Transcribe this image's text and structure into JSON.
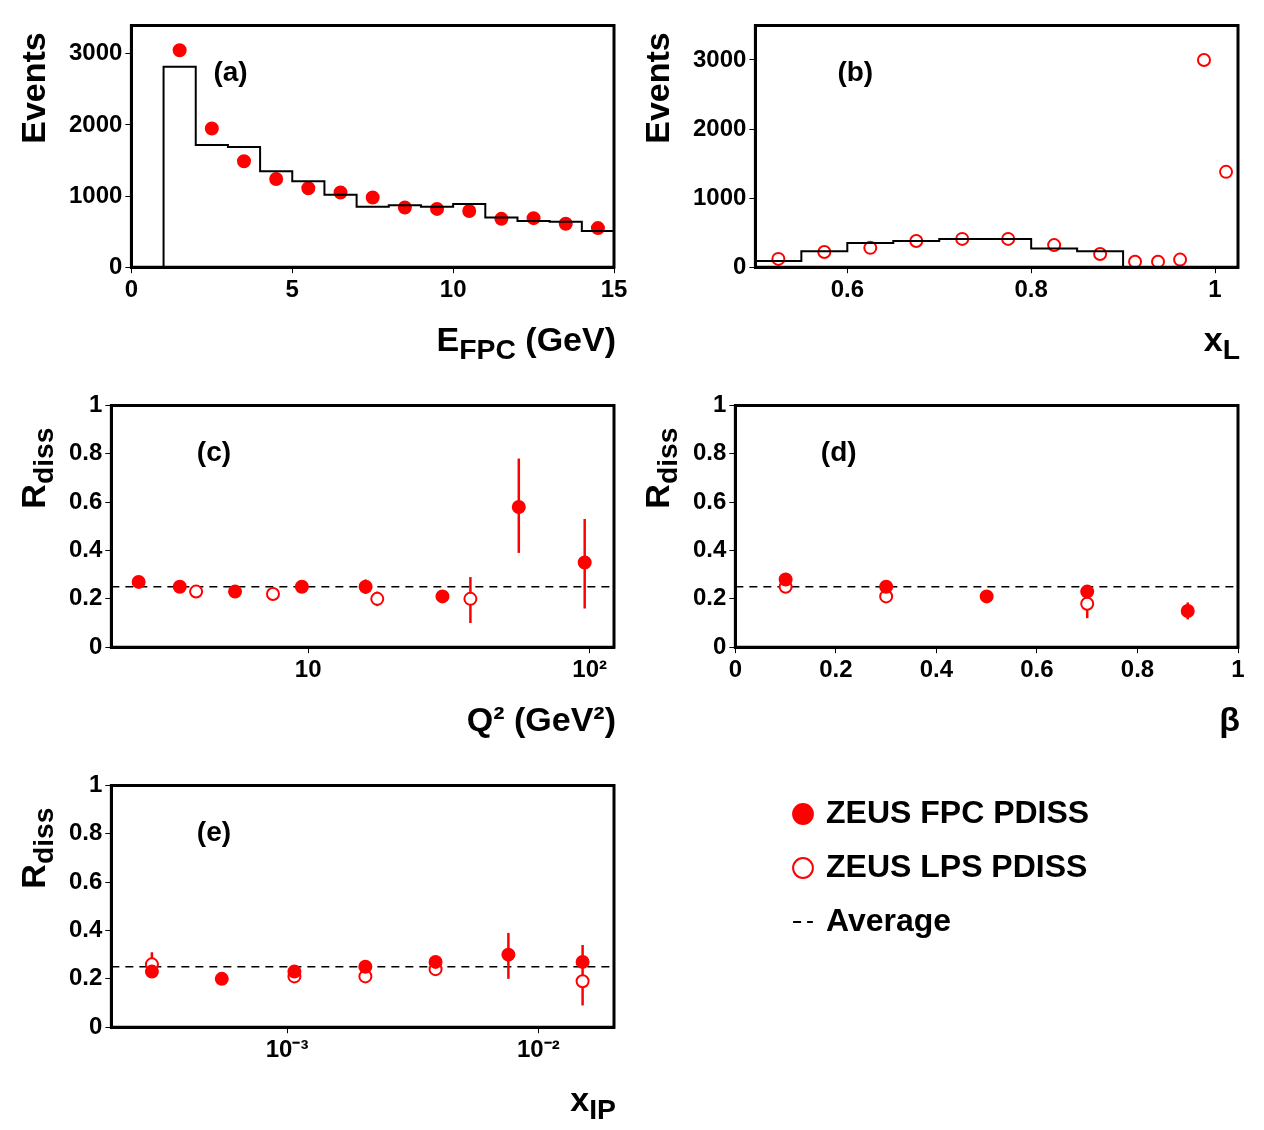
{
  "chart_data": [
    {
      "type": "scatter",
      "ylabel": "Events",
      "xlabel": "E$_{FPC}$ (GeV)",
      "annotations": [
        "(a)"
      ],
      "xlim": [
        0,
        15
      ],
      "xticks": [
        0,
        5,
        10,
        15
      ],
      "ylim": [
        0,
        3400
      ],
      "yticks": [
        0,
        1000,
        2000,
        3000
      ],
      "series": [
        {
          "type": "histogram",
          "color": "#000000",
          "bins": [
            1,
            2,
            3,
            4,
            5,
            6,
            7,
            8,
            9,
            10,
            11,
            12,
            13,
            14,
            15
          ],
          "values": [
            2820,
            1720,
            1690,
            1350,
            1210,
            1020,
            850,
            870,
            850,
            890,
            700,
            650,
            640,
            510
          ]
        },
        {
          "type": "scatter",
          "color": "#ff0000",
          "marker": "circle",
          "x": [
            1.5,
            2.5,
            3.5,
            4.5,
            5.5,
            6.5,
            7.5,
            8.5,
            9.5,
            10.5,
            11.5,
            12.5,
            13.5,
            14.5
          ],
          "values": [
            3050,
            1950,
            1490,
            1240,
            1110,
            1050,
            980,
            840,
            820,
            790,
            680,
            690,
            610,
            550
          ]
        }
      ]
    },
    {
      "type": "scatter",
      "ylabel": "Events",
      "xlabel": "x$_{L}$",
      "annotations": [
        "(b)"
      ],
      "xlim": [
        0.5,
        1.025
      ],
      "xticks": [
        0.6,
        0.8,
        1
      ],
      "ylim": [
        0,
        3500
      ],
      "yticks": [
        0,
        1000,
        2000,
        3000
      ],
      "series": [
        {
          "type": "histogram",
          "color": "#000000",
          "bins": [
            0.5,
            0.55,
            0.6,
            0.65,
            0.7,
            0.75,
            0.8,
            0.85,
            0.9
          ],
          "values": [
            90,
            230,
            350,
            380,
            410,
            410,
            270,
            230
          ]
        },
        {
          "type": "scatter",
          "color": "#ff0000",
          "marker": "circle-open",
          "x": [
            0.525,
            0.575,
            0.625,
            0.675,
            0.725,
            0.775,
            0.825,
            0.875,
            0.913,
            0.938,
            0.962,
            0.988,
            1.012
          ],
          "values": [
            120,
            220,
            280,
            380,
            410,
            410,
            320,
            190,
            80,
            80,
            110,
            3000,
            1380
          ]
        }
      ]
    },
    {
      "type": "scatter",
      "ylabel": "R$_{diss}$",
      "xlabel": "Q² (GeV²)",
      "annotations": [
        "(c)"
      ],
      "log": "x",
      "xlim": [
        2,
        122
      ],
      "xticks": [
        10,
        {
          "value": 100,
          "label": "10²"
        }
      ],
      "ylim": [
        0,
        1
      ],
      "yticks": [
        0,
        0.2,
        0.4,
        0.6,
        0.8,
        1
      ],
      "ref_lines": [
        {
          "axis": "y",
          "value": 0.25,
          "line_style": "dashed",
          "color": "#000000"
        }
      ],
      "series": [
        {
          "type": "scatter",
          "color": "#ff0000",
          "marker": "circle",
          "x": [
            2.5,
            3.5,
            5.5,
            9.5,
            16,
            30,
            56,
            96
          ],
          "values": [
            0.27,
            0.25,
            0.23,
            0.25,
            0.25,
            0.21,
            0.58,
            0.35
          ],
          "errors": [
            null,
            null,
            null,
            null,
            0.03,
            0.02,
            [
              0.39,
              0.78
            ],
            [
              0.16,
              0.53
            ]
          ]
        },
        {
          "type": "scatter",
          "color": "#ff0000",
          "marker": "circle-open",
          "x": [
            4,
            7.5,
            17.6,
            37.7
          ],
          "values": [
            0.23,
            0.22,
            0.2,
            0.2
          ],
          "errors": [
            null,
            null,
            0.03,
            [
              0.1,
              0.29
            ]
          ]
        }
      ]
    },
    {
      "type": "scatter",
      "ylabel": "R$_{diss}$",
      "xlabel": "β",
      "annotations": [
        "(d)"
      ],
      "xlim": [
        0,
        1
      ],
      "xticks": [
        0,
        0.2,
        0.4,
        0.6,
        0.8,
        1
      ],
      "ylim": [
        0,
        1
      ],
      "yticks": [
        0,
        0.2,
        0.4,
        0.6,
        0.8,
        1
      ],
      "ref_lines": [
        {
          "axis": "y",
          "value": 0.25,
          "line_style": "dashed",
          "color": "#000000"
        }
      ],
      "series": [
        {
          "type": "scatter",
          "color": "#ff0000",
          "marker": "circle",
          "x": [
            0.1,
            0.3,
            0.5,
            0.7,
            0.9
          ],
          "values": [
            0.28,
            0.25,
            0.21,
            0.23,
            0.15
          ],
          "errors": [
            null,
            null,
            null,
            null,
            0.035
          ]
        },
        {
          "type": "scatter",
          "color": "#ff0000",
          "marker": "circle-open",
          "x": [
            0.1,
            0.3,
            0.5,
            0.7
          ],
          "values": [
            0.25,
            0.21,
            null,
            0.18
          ],
          "errors": [
            null,
            0.02,
            null,
            [
              0.12,
              0.21
            ]
          ]
        }
      ]
    },
    {
      "type": "scatter",
      "ylabel": "R$_{diss}$",
      "xlabel": "x$_{IP}$",
      "annotations": [
        "(e)"
      ],
      "log": "x",
      "xlim": [
        0.0002,
        0.02
      ],
      "xticks": [
        {
          "value": 0.001,
          "label": "10⁻³"
        },
        {
          "value": 0.01,
          "label": "10⁻²"
        }
      ],
      "ylim": [
        0,
        1
      ],
      "yticks": [
        0,
        0.2,
        0.4,
        0.6,
        0.8,
        1
      ],
      "legend": "right",
      "ref_lines": [
        {
          "axis": "y",
          "value": 0.25,
          "line_style": "dashed",
          "color": "#000000",
          "label": "Average"
        }
      ],
      "series": [
        {
          "type": "scatter",
          "name": "ZEUS FPC PDISS",
          "color": "#ff0000",
          "marker": "circle",
          "x": [
            0.00029,
            0.00055,
            0.00107,
            0.00205,
            0.0039,
            0.0076,
            0.015
          ],
          "values": [
            0.23,
            0.2,
            0.23,
            0.25,
            0.27,
            0.3,
            0.27
          ],
          "errors": [
            null,
            null,
            null,
            null,
            null,
            [
              0.2,
              0.39
            ],
            null
          ]
        },
        {
          "type": "scatter",
          "name": "ZEUS LPS PDISS",
          "color": "#ff0000",
          "marker": "circle-open",
          "x": [
            0.00029,
            0.00055,
            0.00107,
            0.00205,
            0.0039,
            0.0076,
            0.015
          ],
          "values": [
            0.26,
            null,
            0.21,
            0.21,
            0.24,
            null,
            0.19
          ],
          "errors": [
            0.05,
            null,
            null,
            null,
            0.02,
            null,
            [
              0.09,
              0.34
            ]
          ]
        }
      ]
    }
  ]
}
